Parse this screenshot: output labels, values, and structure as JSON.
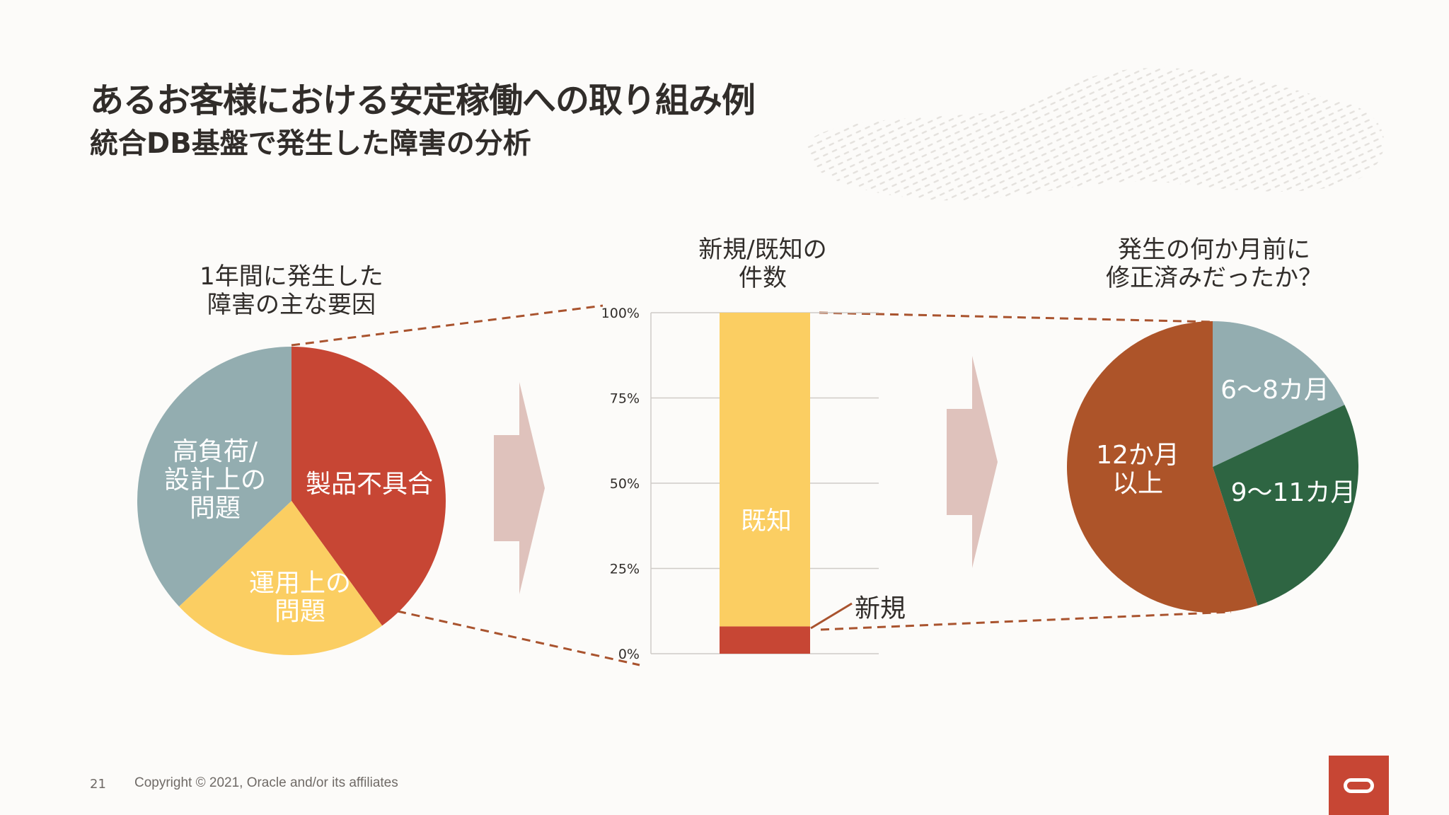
{
  "slide": {
    "title": "あるお客様における安定稼働への取り組み例",
    "subtitle": "統合DB基盤で発生した障害の分析",
    "page_number": "21",
    "copyright": "Copyright © 2021, Oracle and/or its affiliates"
  },
  "colors": {
    "red": "#c74634",
    "yellow": "#fbce62",
    "gray_teal": "#93adb0",
    "dark_green": "#2e6542",
    "rust": "#ad5429",
    "arrow": "#dfc2bc",
    "dashed": "#a9532e"
  },
  "chart_data": [
    {
      "type": "pie",
      "title_lines": [
        "1年間に発生した",
        "障害の主な要因"
      ],
      "slices": [
        {
          "label_lines": [
            "製品不具合"
          ],
          "value": 40,
          "color": "#c74634"
        },
        {
          "label_lines": [
            "運用上の",
            "問題"
          ],
          "value": 23,
          "color": "#fbce62"
        },
        {
          "label_lines": [
            "高負荷/",
            "設計上の",
            "問題"
          ],
          "value": 37,
          "color": "#93adb0"
        }
      ]
    },
    {
      "type": "bar",
      "stacked": true,
      "title_lines": [
        "新規/既知の",
        "件数"
      ],
      "y_ticks": [
        "0%",
        "25%",
        "50%",
        "75%",
        "100%"
      ],
      "ylim": [
        0,
        100
      ],
      "grid": true,
      "series": [
        {
          "name": "新規",
          "values": [
            8
          ],
          "color": "#c74634"
        },
        {
          "name": "既知",
          "values": [
            92
          ],
          "color": "#fbce62"
        }
      ]
    },
    {
      "type": "pie",
      "title_lines": [
        "発生の何か月前に",
        "修正済みだったか？"
      ],
      "slices": [
        {
          "label_lines": [
            "6～8カ月"
          ],
          "value": 18,
          "color": "#93adb0"
        },
        {
          "label_lines": [
            "9～11カ月"
          ],
          "value": 27,
          "color": "#2e6542"
        },
        {
          "label_lines": [
            "12か月",
            "以上"
          ],
          "value": 55,
          "color": "#ad5429"
        }
      ]
    }
  ]
}
